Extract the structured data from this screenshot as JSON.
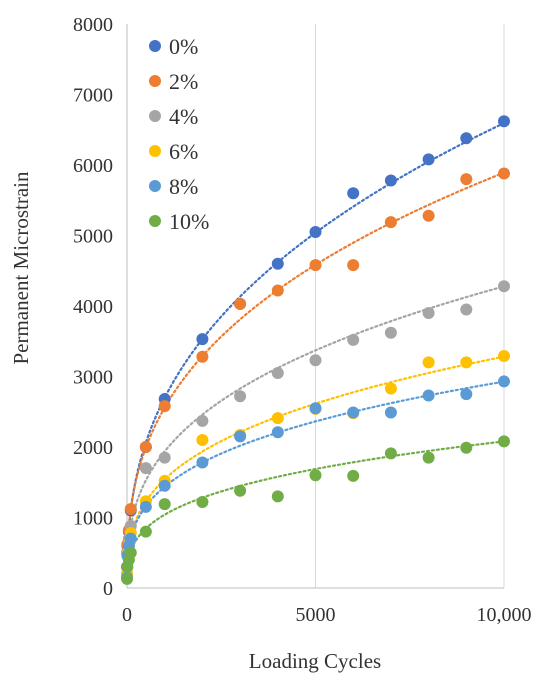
{
  "chart_data": {
    "type": "scatter",
    "title": "",
    "xlabel": "Loading Cycles",
    "ylabel": "Permanent Microstrain",
    "xlim": [
      0,
      10000
    ],
    "ylim": [
      0,
      8000
    ],
    "x_ticks": [
      0,
      5000,
      10000
    ],
    "x_tick_labels": [
      "0",
      "5000",
      "10,000"
    ],
    "y_ticks": [
      0,
      1000,
      2000,
      3000,
      4000,
      5000,
      6000,
      7000,
      8000
    ],
    "y_tick_labels": [
      "0",
      "1000",
      "2000",
      "3000",
      "4000",
      "5000",
      "6000",
      "7000",
      "8000"
    ],
    "grid": "vertical",
    "legend": "top-left",
    "trendline": "dotted power fit per series",
    "series": [
      {
        "name": "0%",
        "color": "#4472C4",
        "points": [
          [
            1,
            300
          ],
          [
            10,
            600
          ],
          [
            50,
            800
          ],
          [
            100,
            1100
          ],
          [
            500,
            2000
          ],
          [
            1000,
            2680
          ],
          [
            2000,
            3530
          ],
          [
            3000,
            4030
          ],
          [
            4000,
            4600
          ],
          [
            5000,
            5050
          ],
          [
            6000,
            5600
          ],
          [
            7000,
            5780
          ],
          [
            8000,
            6080
          ],
          [
            9000,
            6380
          ],
          [
            10000,
            6620
          ]
        ],
        "fit": {
          "a": 185,
          "b": 0.388
        }
      },
      {
        "name": "2%",
        "color": "#ED7D31",
        "points": [
          [
            1,
            500
          ],
          [
            10,
            620
          ],
          [
            50,
            820
          ],
          [
            100,
            1120
          ],
          [
            500,
            2000
          ],
          [
            1000,
            2580
          ],
          [
            2000,
            3280
          ],
          [
            3000,
            4030
          ],
          [
            4000,
            4220
          ],
          [
            5000,
            4580
          ],
          [
            6000,
            4580
          ],
          [
            7000,
            5190
          ],
          [
            8000,
            5280
          ],
          [
            9000,
            5800
          ],
          [
            10000,
            5880
          ]
        ],
        "fit": {
          "a": 210,
          "b": 0.362
        }
      },
      {
        "name": "4%",
        "color": "#A5A5A5",
        "points": [
          [
            1,
            200
          ],
          [
            10,
            520
          ],
          [
            50,
            700
          ],
          [
            100,
            880
          ],
          [
            500,
            1700
          ],
          [
            1000,
            1850
          ],
          [
            2000,
            2370
          ],
          [
            3000,
            2720
          ],
          [
            4000,
            3050
          ],
          [
            5000,
            3230
          ],
          [
            6000,
            3520
          ],
          [
            7000,
            3620
          ],
          [
            8000,
            3900
          ],
          [
            9000,
            3950
          ],
          [
            10000,
            4280
          ]
        ],
        "fit": {
          "a": 180,
          "b": 0.344
        }
      },
      {
        "name": "6%",
        "color": "#FFC000",
        "points": [
          [
            1,
            200
          ],
          [
            10,
            480
          ],
          [
            50,
            620
          ],
          [
            100,
            780
          ],
          [
            500,
            1230
          ],
          [
            1000,
            1520
          ],
          [
            2000,
            2100
          ],
          [
            3000,
            2170
          ],
          [
            4000,
            2410
          ],
          [
            5000,
            2540
          ],
          [
            6000,
            2480
          ],
          [
            7000,
            2830
          ],
          [
            8000,
            3200
          ],
          [
            9000,
            3200
          ],
          [
            10000,
            3290
          ]
        ],
        "fit": {
          "a": 160,
          "b": 0.328
        }
      },
      {
        "name": "8%",
        "color": "#5B9BD5",
        "points": [
          [
            1,
            150
          ],
          [
            10,
            460
          ],
          [
            50,
            600
          ],
          [
            100,
            700
          ],
          [
            500,
            1150
          ],
          [
            1000,
            1450
          ],
          [
            2000,
            1780
          ],
          [
            3000,
            2150
          ],
          [
            4000,
            2210
          ],
          [
            5000,
            2550
          ],
          [
            6000,
            2490
          ],
          [
            7000,
            2490
          ],
          [
            8000,
            2730
          ],
          [
            9000,
            2750
          ],
          [
            10000,
            2930
          ]
        ],
        "fit": {
          "a": 170,
          "b": 0.309
        }
      },
      {
        "name": "10%",
        "color": "#70AD47",
        "points": [
          [
            1,
            130
          ],
          [
            10,
            300
          ],
          [
            50,
            400
          ],
          [
            100,
            500
          ],
          [
            500,
            800
          ],
          [
            1000,
            1190
          ],
          [
            2000,
            1220
          ],
          [
            3000,
            1380
          ],
          [
            4000,
            1300
          ],
          [
            5000,
            1600
          ],
          [
            6000,
            1590
          ],
          [
            7000,
            1910
          ],
          [
            8000,
            1850
          ],
          [
            9000,
            1990
          ],
          [
            10000,
            2080
          ]
        ],
        "fit": {
          "a": 130,
          "b": 0.301
        }
      }
    ]
  }
}
